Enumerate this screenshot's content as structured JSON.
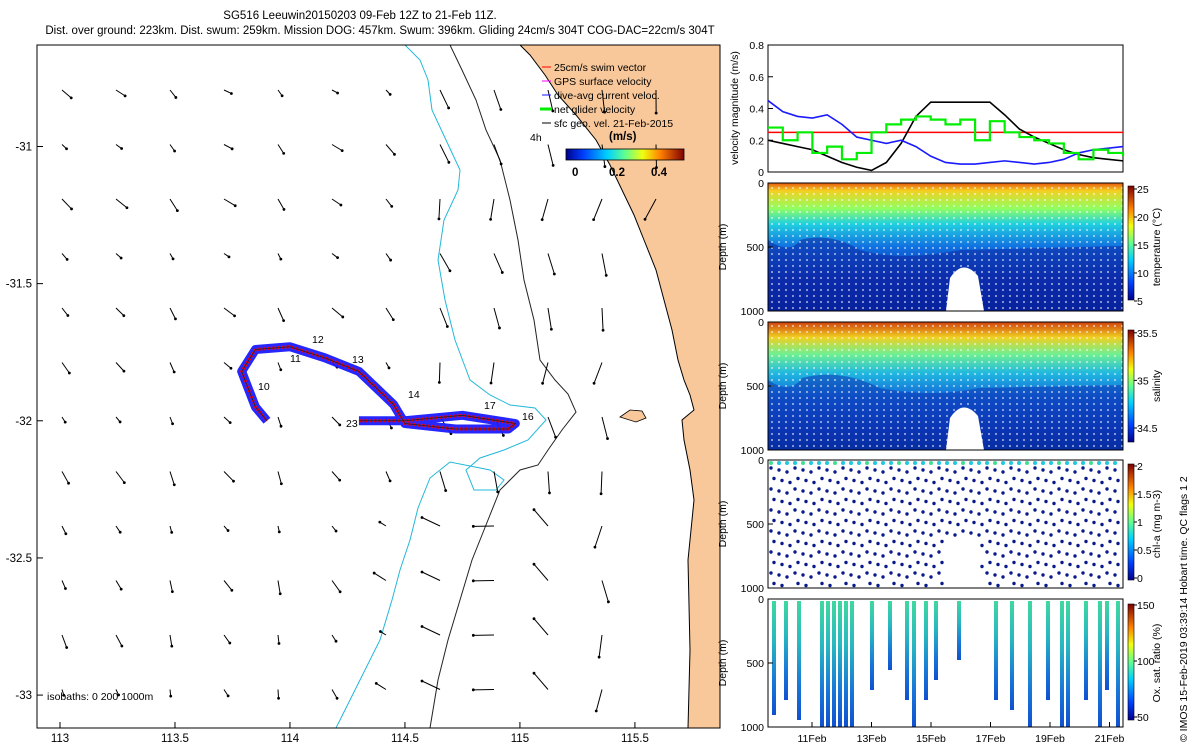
{
  "title_line1": "SG516 Leeuwin20150203 09-Feb 12Z to 21-Feb 11Z.",
  "title_line2": "Dist. over ground: 223km. Dist. swum: 259km. Mission DOG: 457km. Swum: 396km. Gliding 24cm/s 304T COG-DAC=22cm/s 304T",
  "credit": "© IMOS 15-Feb-2019 03:39:14 Hobart time. QC flags 1 2",
  "colors": {
    "land": "#f9c89a",
    "coast": "#000000",
    "iso200": "#22b8d8",
    "iso1000": "#222222",
    "track": "#ff0000",
    "dac": "#1a1aff",
    "net": "#00ee00",
    "ref": "#ff0000"
  },
  "chart_data": [
    {
      "type": "map",
      "xticks": [
        "113",
        "113.5",
        "114",
        "114.5",
        "115",
        "115.5"
      ],
      "yticks": [
        "-31",
        "-31.5",
        "-32",
        "-32.5",
        "-33"
      ],
      "xlim": [
        112.9,
        115.87
      ],
      "ylim": [
        -33.12,
        -30.63
      ],
      "legend": {
        "placement": "top-right",
        "entries": [
          "25cm/s swim vector",
          "GPS surface velocity",
          "dive-avg current veloc.",
          "net glider velocity",
          "sfc geo. vel. 21-Feb-2015"
        ]
      },
      "vector_time_label": "4h",
      "colorbar": {
        "label": "(m/s)",
        "ticks": [
          "0",
          "0.2",
          "0.4"
        ],
        "range": [
          0,
          0.5
        ]
      },
      "isobath_label": "isobaths: 0   200  1000m",
      "track_day_labels": [
        "10",
        "11",
        "12",
        "13",
        "14",
        "16",
        "17",
        "23"
      ],
      "track": [
        [
          114.3,
          -32.0
        ],
        [
          114.5,
          -32.0
        ],
        [
          114.75,
          -31.98
        ],
        [
          114.98,
          -32.01
        ],
        [
          114.95,
          -32.03
        ],
        [
          114.72,
          -32.03
        ],
        [
          114.5,
          -32.01
        ],
        [
          114.45,
          -31.94
        ],
        [
          114.3,
          -31.82
        ],
        [
          114.15,
          -31.77
        ],
        [
          114.0,
          -31.73
        ],
        [
          113.85,
          -31.74
        ],
        [
          113.79,
          -31.82
        ],
        [
          113.85,
          -31.95
        ],
        [
          113.9,
          -32.0
        ]
      ]
    },
    {
      "type": "line",
      "ylabel": "velocity magnitude (m/s)",
      "ylim": [
        0,
        0.8
      ],
      "yticks": [
        "0",
        "0.2",
        "0.4",
        "0.6",
        "0.8"
      ],
      "reference_line": 0.25,
      "x": [
        0,
        0.5,
        1,
        1.5,
        2,
        2.5,
        3,
        3.5,
        4,
        4.5,
        5,
        5.5,
        6,
        6.5,
        7,
        7.5,
        8,
        8.5,
        9,
        9.5,
        10,
        10.5,
        11,
        11.5,
        12
      ],
      "series": [
        {
          "color": "#000000",
          "values": [
            0.2,
            0.18,
            0.16,
            0.14,
            0.1,
            0.06,
            0.03,
            0.01,
            0.06,
            0.18,
            0.35,
            0.44,
            0.44,
            0.44,
            0.44,
            0.44,
            0.36,
            0.27,
            0.22,
            0.18,
            0.14,
            0.11,
            0.09,
            0.08,
            0.07
          ]
        },
        {
          "color": "#1a1aff",
          "values": [
            0.45,
            0.38,
            0.35,
            0.34,
            0.36,
            0.3,
            0.22,
            0.2,
            0.18,
            0.2,
            0.16,
            0.1,
            0.06,
            0.05,
            0.05,
            0.06,
            0.07,
            0.06,
            0.05,
            0.06,
            0.08,
            0.12,
            0.14,
            0.15,
            0.16
          ]
        },
        {
          "color": "#00ee00",
          "values": [
            0.28,
            0.2,
            0.25,
            0.12,
            0.16,
            0.08,
            0.12,
            0.25,
            0.3,
            0.33,
            0.35,
            0.33,
            0.3,
            0.33,
            0.2,
            0.32,
            0.25,
            0.22,
            0.2,
            0.18,
            0.12,
            0.08,
            0.14,
            0.12,
            0.1
          ]
        }
      ]
    },
    {
      "type": "heatmap",
      "ylabel": "Depth (m)",
      "cbar_label": "temperature (°C)",
      "cbar_ticks": [
        "5",
        "10",
        "15",
        "20",
        "25"
      ],
      "yticks": [
        "0",
        "500",
        "1000"
      ]
    },
    {
      "type": "heatmap",
      "ylabel": "Depth (m)",
      "cbar_label": "salinity",
      "cbar_ticks": [
        "34.5",
        "35",
        "35.5"
      ],
      "yticks": [
        "0",
        "500",
        "1000"
      ]
    },
    {
      "type": "heatmap",
      "ylabel": "Depth (m)",
      "cbar_label": "chl-a (mg m-3)",
      "cbar_ticks": [
        "0",
        "0.5",
        "1",
        "1.5",
        "2"
      ],
      "yticks": [
        "0",
        "500",
        "1000"
      ]
    },
    {
      "type": "heatmap",
      "ylabel": "Depth (m)",
      "cbar_label": "Ox. sat. ratio (%)",
      "cbar_ticks": [
        "50",
        "100",
        "150"
      ],
      "yticks": [
        "0",
        "500",
        "1000"
      ],
      "xticks": [
        "11Feb",
        "13Feb",
        "15Feb",
        "17Feb",
        "19Feb",
        "21Feb"
      ]
    }
  ]
}
